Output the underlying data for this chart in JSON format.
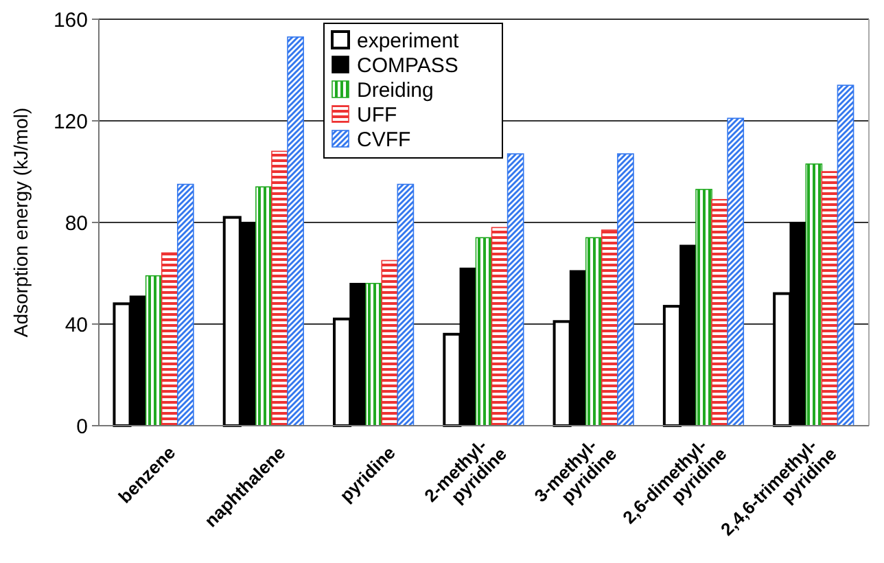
{
  "chart_data": {
    "type": "bar",
    "ylabel": "Adsorption energy (kJ/mol)",
    "categories": [
      "benzene",
      "naphthalene",
      "pyridine",
      "2-methyl-pyridine",
      "3-methyl-pyridine",
      "2,6-dimethyl-pyridine",
      "2,4,6-trimethyl-pyridine"
    ],
    "series": [
      {
        "name": "experiment",
        "color": "#ffffff",
        "values": [
          48,
          82,
          42,
          36,
          41,
          47,
          52
        ]
      },
      {
        "name": "COMPASS",
        "color": "#000000",
        "values": [
          51,
          80,
          56,
          62,
          61,
          71,
          80
        ]
      },
      {
        "name": "Dreiding",
        "color": "#22aa22",
        "values": [
          59,
          94,
          56,
          74,
          74,
          93,
          103
        ]
      },
      {
        "name": "UFF",
        "color": "#ee3333",
        "values": [
          68,
          108,
          65,
          78,
          77,
          89,
          100
        ]
      },
      {
        "name": "CVFF",
        "color": "#3377ee",
        "values": [
          95,
          153,
          95,
          107,
          107,
          121,
          134
        ]
      }
    ],
    "ylim": [
      0,
      160
    ],
    "yticks": [
      0,
      40,
      80,
      120,
      160
    ],
    "grid": "y",
    "legend": "top"
  }
}
